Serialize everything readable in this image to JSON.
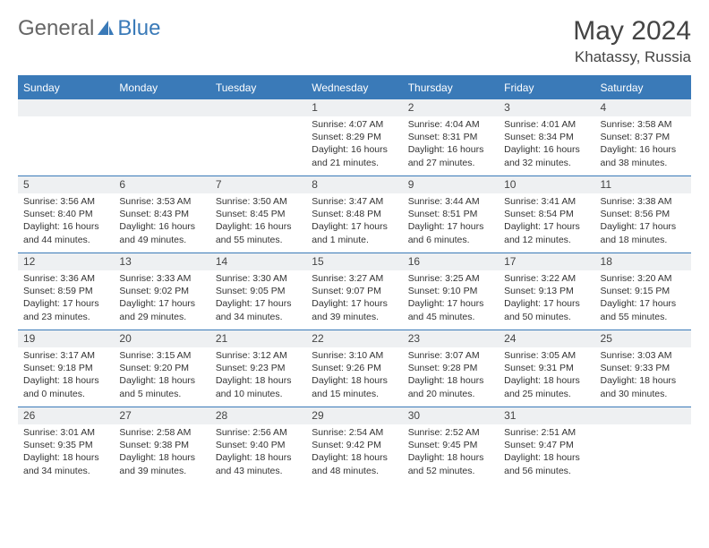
{
  "brand": {
    "part1": "General",
    "part2": "Blue"
  },
  "title": "May 2024",
  "location": "Khatassy, Russia",
  "colors": {
    "header_bg": "#3a7ab8",
    "header_text": "#ffffff",
    "daynum_bg": "#eef0f2",
    "border": "#3a7ab8",
    "body_text": "#333333"
  },
  "days_of_week": [
    "Sunday",
    "Monday",
    "Tuesday",
    "Wednesday",
    "Thursday",
    "Friday",
    "Saturday"
  ],
  "weeks": [
    [
      null,
      null,
      null,
      {
        "n": "1",
        "sunrise": "4:07 AM",
        "sunset": "8:29 PM",
        "daylight": "16 hours and 21 minutes."
      },
      {
        "n": "2",
        "sunrise": "4:04 AM",
        "sunset": "8:31 PM",
        "daylight": "16 hours and 27 minutes."
      },
      {
        "n": "3",
        "sunrise": "4:01 AM",
        "sunset": "8:34 PM",
        "daylight": "16 hours and 32 minutes."
      },
      {
        "n": "4",
        "sunrise": "3:58 AM",
        "sunset": "8:37 PM",
        "daylight": "16 hours and 38 minutes."
      }
    ],
    [
      {
        "n": "5",
        "sunrise": "3:56 AM",
        "sunset": "8:40 PM",
        "daylight": "16 hours and 44 minutes."
      },
      {
        "n": "6",
        "sunrise": "3:53 AM",
        "sunset": "8:43 PM",
        "daylight": "16 hours and 49 minutes."
      },
      {
        "n": "7",
        "sunrise": "3:50 AM",
        "sunset": "8:45 PM",
        "daylight": "16 hours and 55 minutes."
      },
      {
        "n": "8",
        "sunrise": "3:47 AM",
        "sunset": "8:48 PM",
        "daylight": "17 hours and 1 minute."
      },
      {
        "n": "9",
        "sunrise": "3:44 AM",
        "sunset": "8:51 PM",
        "daylight": "17 hours and 6 minutes."
      },
      {
        "n": "10",
        "sunrise": "3:41 AM",
        "sunset": "8:54 PM",
        "daylight": "17 hours and 12 minutes."
      },
      {
        "n": "11",
        "sunrise": "3:38 AM",
        "sunset": "8:56 PM",
        "daylight": "17 hours and 18 minutes."
      }
    ],
    [
      {
        "n": "12",
        "sunrise": "3:36 AM",
        "sunset": "8:59 PM",
        "daylight": "17 hours and 23 minutes."
      },
      {
        "n": "13",
        "sunrise": "3:33 AM",
        "sunset": "9:02 PM",
        "daylight": "17 hours and 29 minutes."
      },
      {
        "n": "14",
        "sunrise": "3:30 AM",
        "sunset": "9:05 PM",
        "daylight": "17 hours and 34 minutes."
      },
      {
        "n": "15",
        "sunrise": "3:27 AM",
        "sunset": "9:07 PM",
        "daylight": "17 hours and 39 minutes."
      },
      {
        "n": "16",
        "sunrise": "3:25 AM",
        "sunset": "9:10 PM",
        "daylight": "17 hours and 45 minutes."
      },
      {
        "n": "17",
        "sunrise": "3:22 AM",
        "sunset": "9:13 PM",
        "daylight": "17 hours and 50 minutes."
      },
      {
        "n": "18",
        "sunrise": "3:20 AM",
        "sunset": "9:15 PM",
        "daylight": "17 hours and 55 minutes."
      }
    ],
    [
      {
        "n": "19",
        "sunrise": "3:17 AM",
        "sunset": "9:18 PM",
        "daylight": "18 hours and 0 minutes."
      },
      {
        "n": "20",
        "sunrise": "3:15 AM",
        "sunset": "9:20 PM",
        "daylight": "18 hours and 5 minutes."
      },
      {
        "n": "21",
        "sunrise": "3:12 AM",
        "sunset": "9:23 PM",
        "daylight": "18 hours and 10 minutes."
      },
      {
        "n": "22",
        "sunrise": "3:10 AM",
        "sunset": "9:26 PM",
        "daylight": "18 hours and 15 minutes."
      },
      {
        "n": "23",
        "sunrise": "3:07 AM",
        "sunset": "9:28 PM",
        "daylight": "18 hours and 20 minutes."
      },
      {
        "n": "24",
        "sunrise": "3:05 AM",
        "sunset": "9:31 PM",
        "daylight": "18 hours and 25 minutes."
      },
      {
        "n": "25",
        "sunrise": "3:03 AM",
        "sunset": "9:33 PM",
        "daylight": "18 hours and 30 minutes."
      }
    ],
    [
      {
        "n": "26",
        "sunrise": "3:01 AM",
        "sunset": "9:35 PM",
        "daylight": "18 hours and 34 minutes."
      },
      {
        "n": "27",
        "sunrise": "2:58 AM",
        "sunset": "9:38 PM",
        "daylight": "18 hours and 39 minutes."
      },
      {
        "n": "28",
        "sunrise": "2:56 AM",
        "sunset": "9:40 PM",
        "daylight": "18 hours and 43 minutes."
      },
      {
        "n": "29",
        "sunrise": "2:54 AM",
        "sunset": "9:42 PM",
        "daylight": "18 hours and 48 minutes."
      },
      {
        "n": "30",
        "sunrise": "2:52 AM",
        "sunset": "9:45 PM",
        "daylight": "18 hours and 52 minutes."
      },
      {
        "n": "31",
        "sunrise": "2:51 AM",
        "sunset": "9:47 PM",
        "daylight": "18 hours and 56 minutes."
      },
      null
    ]
  ]
}
